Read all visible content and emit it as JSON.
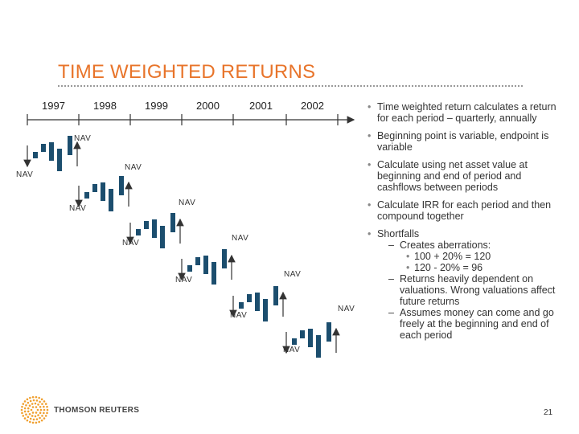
{
  "title": "TIME WEIGHTED RETURNS",
  "years": [
    "1997",
    "1998",
    "1999",
    "2000",
    "2001",
    "2002"
  ],
  "nav_label": "NAV",
  "colors": {
    "title": "#e8742a",
    "bar": "#1c4e6e",
    "line": "#333333"
  },
  "bullets": [
    {
      "text": "Time weighted return calculates a return for each period – quarterly, annually"
    },
    {
      "text": "Beginning point is variable, endpoint is variable"
    },
    {
      "text": "Calculate using net asset value at beginning and end of period and cashflows between periods"
    },
    {
      "text": "Calculate IRR for each period and then compound together"
    },
    {
      "text": "Shortfalls",
      "subs": [
        {
          "text": "Creates aberrations:",
          "subs": [
            {
              "text": "100 + 20% = 120"
            },
            {
              "text": "120 - 20% = 96"
            }
          ]
        },
        {
          "text": "Returns heavily dependent on valuations. Wrong valuations affect future returns"
        },
        {
          "text": "Assumes money can come and go freely at the beginning and end of each period"
        }
      ]
    }
  ],
  "logo": {
    "name": "THOMSON REUTERS"
  },
  "page_number": "21"
}
